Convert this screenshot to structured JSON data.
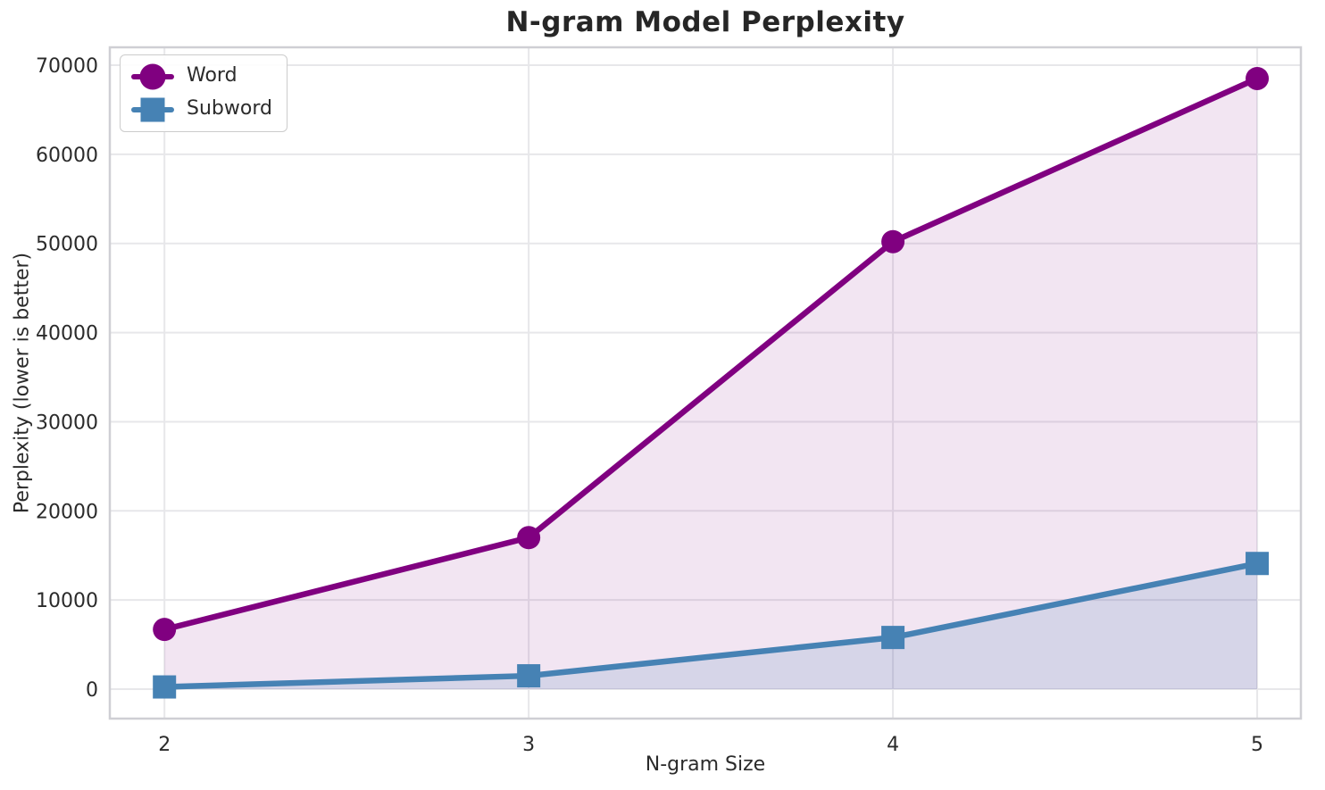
{
  "colors": {
    "word": "#800080",
    "subword": "#4682B4",
    "grid": "#e7e7ea",
    "spine": "#cfcfd4",
    "text": "#2b2b2b",
    "title_text": "#262626",
    "background": "#ffffff"
  },
  "legend": {
    "position": "upper-left",
    "items": [
      "Word",
      "Subword"
    ]
  },
  "chart_data": {
    "type": "line",
    "title": "N-gram Model Perplexity",
    "xlabel": "N-gram Size",
    "ylabel": "Perplexity (lower is better)",
    "x": [
      2,
      3,
      4,
      5
    ],
    "xtick_labels": [
      "2",
      "3",
      "4",
      "5"
    ],
    "yticks": [
      0,
      10000,
      20000,
      30000,
      40000,
      50000,
      60000,
      70000
    ],
    "ytick_labels": [
      "0",
      "10000",
      "20000",
      "30000",
      "40000",
      "50000",
      "60000",
      "70000"
    ],
    "xlim": [
      1.85,
      5.12
    ],
    "ylim": [
      -3300,
      72000
    ],
    "grid": true,
    "legend_position": "upper left",
    "series": [
      {
        "name": "Word",
        "marker": "circle",
        "color": "#800080",
        "values": [
          6700,
          17000,
          50200,
          68500
        ],
        "area_fill_to_zero": true
      },
      {
        "name": "Subword",
        "marker": "square",
        "color": "#4682B4",
        "values": [
          250,
          1500,
          5800,
          14100
        ],
        "area_fill_to_zero": true
      }
    ]
  }
}
